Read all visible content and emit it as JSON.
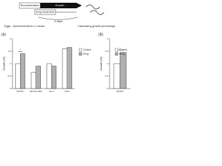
{
  "diagram": {
    "steps": [
      "Recombination",
      "Growth"
    ],
    "treatment": "Drug treatment",
    "duration": "4 days",
    "start": "Eggs : Synchronization L1 larvae",
    "end": "Calculating growth percentage"
  },
  "chart_data": [
    {
      "type": "bar",
      "panel": "(A)",
      "y_label": "Growth (%)",
      "categories": [
        "N2(WT)",
        "daf-16(mu86)",
        "skn-1",
        "daf-2"
      ],
      "series": [
        {
          "name": "Control",
          "color": "#ffffff",
          "values": [
            1.0,
            0.65,
            1.0,
            1.6
          ]
        },
        {
          "name": "Drug",
          "color": "#b0b0b0",
          "values": [
            1.4,
            0.9,
            0.9,
            1.65
          ]
        }
      ],
      "significance": [
        "*",
        null,
        null,
        null
      ],
      "ylim": [
        0,
        2
      ],
      "yticks": [
        0,
        0.5,
        1,
        1.5,
        2
      ]
    },
    {
      "type": "bar",
      "panel": "(B)",
      "y_label": "Growth (%)",
      "categories": [
        "N2(WT)"
      ],
      "series": [
        {
          "name": "Control",
          "color": "#ffffff",
          "values": [
            1.0
          ]
        },
        {
          "name": "Drug",
          "color": "#b0b0b0",
          "values": [
            1.45
          ]
        }
      ],
      "significance": [
        "*"
      ],
      "ylim": [
        0,
        2
      ],
      "yticks": [
        0,
        0.5,
        1,
        1.5,
        2
      ]
    }
  ]
}
